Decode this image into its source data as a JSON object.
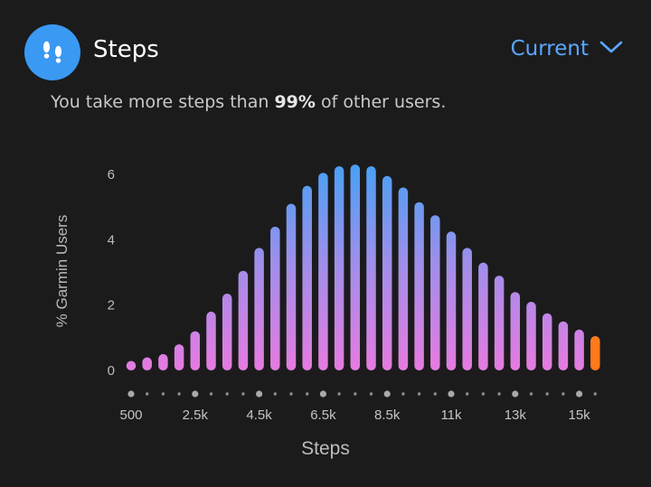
{
  "header": {
    "title": "Steps",
    "period_label": "Current"
  },
  "summary": {
    "prefix": "You take more steps than ",
    "percent": "99%",
    "suffix": " of other users."
  },
  "colors": {
    "accent": "#3a99f2",
    "link": "#5aa8ff",
    "bar_top": "#4aa0f5",
    "bar_bottom": "#e67be0",
    "highlight_bar": "#ff7a1a",
    "background": "#1b1b1c"
  },
  "chart_data": {
    "type": "bar",
    "xlabel": "Steps",
    "ylabel": "% Garmin Users",
    "ylim": [
      0,
      6.3
    ],
    "y_ticks": [
      0,
      2,
      4,
      6
    ],
    "x_tick_labels": [
      "500",
      "2.5k",
      "4.5k",
      "6.5k",
      "8.5k",
      "11k",
      "13k",
      "15k"
    ],
    "values": [
      0.2,
      0.4,
      0.5,
      0.8,
      1.2,
      1.8,
      2.35,
      3.05,
      3.75,
      4.4,
      5.1,
      5.65,
      6.05,
      6.25,
      6.3,
      6.25,
      5.95,
      5.6,
      5.15,
      4.75,
      4.25,
      3.75,
      3.3,
      2.9,
      2.4,
      2.1,
      1.75,
      1.5,
      1.25,
      1.05
    ],
    "highlight_index": 29
  }
}
